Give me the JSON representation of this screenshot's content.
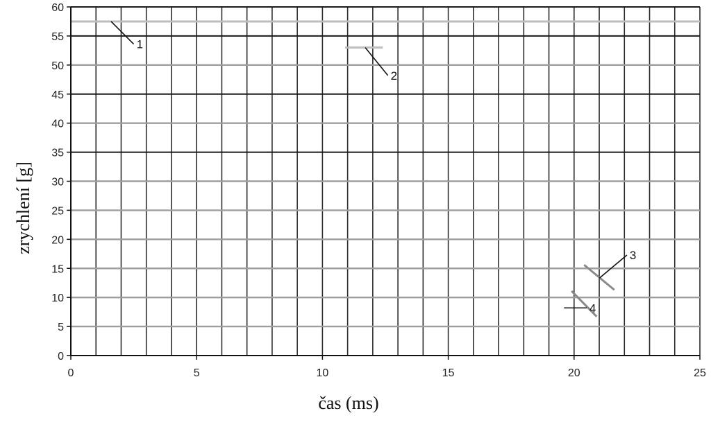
{
  "chart_data": {
    "type": "line",
    "title": "",
    "xlabel": "čas  (ms)",
    "ylabel": "zrychlení  [g]",
    "xlim": [
      0,
      25
    ],
    "ylim": [
      0,
      60
    ],
    "x_ticks": [
      0,
      5,
      10,
      15,
      20,
      25
    ],
    "y_ticks": [
      0,
      5,
      10,
      15,
      20,
      25,
      30,
      35,
      40,
      45,
      50,
      55,
      60
    ],
    "x_minor_step": 1,
    "y_minor_step": 5,
    "y_emphasized_gridlines": [
      35,
      45,
      55
    ],
    "grid": true,
    "legend": "none",
    "series": [
      {
        "label": "1",
        "x": [
          0,
          25
        ],
        "y": [
          57.5,
          57.5
        ],
        "color": "#bdbdbd"
      },
      {
        "label": "2",
        "x": [
          10.9,
          12.4
        ],
        "y": [
          53,
          53
        ],
        "color": "#bdbdbd"
      },
      {
        "label": "3",
        "x": [
          20.4,
          21.6
        ],
        "y": [
          15.6,
          11.3
        ],
        "color": "#8a8a8a"
      },
      {
        "label": "4",
        "x": [
          19.9,
          20.9
        ],
        "y": [
          11.1,
          6.7
        ],
        "color": "#8a8a8a"
      }
    ],
    "annotations": [
      {
        "text": "1",
        "x_from": 1.6,
        "y_from": 57.5,
        "x_to": 2.5,
        "y_to": 53.6
      },
      {
        "text": "2",
        "x_from": 11.7,
        "y_from": 53,
        "x_to": 12.6,
        "y_to": 48.2
      },
      {
        "text": "3",
        "x_from": 21.0,
        "y_from": 13.3,
        "x_to": 22.1,
        "y_to": 17.3
      },
      {
        "text": "4",
        "x_from": 19.6,
        "y_from": 8.2,
        "x_to": 20.5,
        "y_to": 8.2
      }
    ]
  }
}
